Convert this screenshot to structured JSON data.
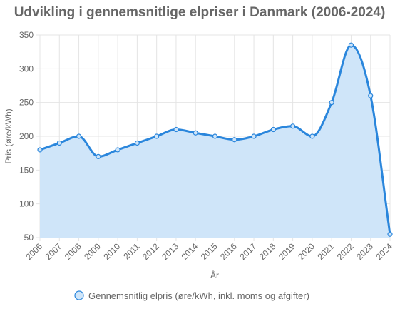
{
  "chart_data": {
    "type": "area",
    "title": "Udvikling i gennemsnitlige elpriser i Danmark (2006-2024)",
    "xlabel": "År",
    "ylabel": "Pris (øre/kWh)",
    "ylim": [
      50,
      350
    ],
    "yticks": [
      50,
      100,
      150,
      200,
      250,
      300,
      350
    ],
    "grid": true,
    "legend_position": "bottom",
    "categories": [
      "2006",
      "2007",
      "2008",
      "2009",
      "2010",
      "2011",
      "2012",
      "2013",
      "2014",
      "2015",
      "2016",
      "2017",
      "2018",
      "2019",
      "2020",
      "2021",
      "2022",
      "2023",
      "2024"
    ],
    "series": [
      {
        "name": "Gennemsnitlig elpris (øre/kWh, inkl. moms og afgifter)",
        "values": [
          180,
          190,
          200,
          170,
          180,
          190,
          200,
          210,
          205,
          200,
          195,
          200,
          210,
          215,
          200,
          250,
          335,
          260,
          55
        ],
        "line_color": "#2a86dc",
        "fill_color": "#cfe5f9"
      }
    ]
  }
}
